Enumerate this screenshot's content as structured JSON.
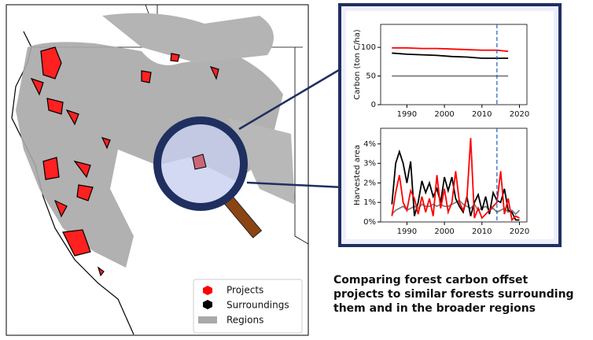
{
  "chart_data": [
    {
      "type": "line",
      "ylabel": "Carbon (ton C/ha)",
      "x": [
        1986,
        1990,
        1994,
        1998,
        2002,
        2006,
        2010,
        2014,
        2017
      ],
      "series": [
        {
          "name": "Projects",
          "color": "#ff0000",
          "values": [
            99,
            99,
            98,
            98,
            97,
            96,
            95,
            95,
            93
          ]
        },
        {
          "name": "Surroundings",
          "color": "#000000",
          "values": [
            90,
            88,
            87,
            86,
            84,
            83,
            81,
            81,
            81
          ]
        },
        {
          "name": "Regions",
          "color": "#808080",
          "values": [
            50,
            50,
            50,
            50,
            50,
            50,
            50,
            50,
            50
          ]
        }
      ],
      "xlim": [
        1983,
        2022
      ],
      "xticks": [
        1990,
        2000,
        2010,
        2020
      ],
      "ylim": [
        0,
        140
      ],
      "yticks": [
        0,
        50,
        100
      ],
      "vline": 2014
    },
    {
      "type": "line",
      "ylabel": "Harvested area",
      "x": [
        1986,
        1987,
        1988,
        1989,
        1990,
        1991,
        1992,
        1993,
        1994,
        1995,
        1996,
        1997,
        1998,
        1999,
        2000,
        2001,
        2002,
        2003,
        2004,
        2005,
        2006,
        2007,
        2008,
        2009,
        2010,
        2011,
        2012,
        2013,
        2014,
        2015,
        2016,
        2017,
        2018,
        2019,
        2020
      ],
      "series": [
        {
          "name": "Projects",
          "color": "#ff0000",
          "values": [
            0.3,
            1.5,
            2.4,
            1.0,
            0.6,
            1.6,
            1.2,
            0.4,
            1.3,
            0.5,
            1.2,
            0.3,
            2.4,
            0.7,
            1.7,
            0.5,
            1.0,
            2.6,
            1.0,
            0.6,
            1.2,
            4.3,
            0.2,
            0.7,
            0.2,
            0.4,
            0.6,
            0.8,
            1.0,
            2.6,
            0.4,
            1.2,
            0.1,
            0.3,
            0.2
          ]
        },
        {
          "name": "Surroundings",
          "color": "#000000",
          "values": [
            0.9,
            3.0,
            3.6,
            3.0,
            2.0,
            3.1,
            0.3,
            1.0,
            2.1,
            1.5,
            2.0,
            1.3,
            1.7,
            1.0,
            2.3,
            1.6,
            2.3,
            1.2,
            0.8,
            0.5,
            1.3,
            0.3,
            1.0,
            1.4,
            0.6,
            1.3,
            0.4,
            1.5,
            1.1,
            1.0,
            1.7,
            0.6,
            0.5,
            0.1,
            0.1
          ]
        },
        {
          "name": "Regions",
          "color": "#808080",
          "values": [
            0.4,
            0.6,
            0.7,
            0.8,
            0.6,
            0.7,
            0.8,
            0.7,
            0.9,
            0.8,
            0.8,
            0.9,
            0.8,
            0.9,
            0.8,
            0.8,
            0.9,
            1.0,
            1.1,
            0.9,
            0.8,
            0.7,
            0.9,
            0.6,
            0.7,
            0.8,
            0.6,
            0.7,
            0.5,
            0.6,
            0.7,
            0.5,
            0.6,
            0.4,
            0.6
          ]
        }
      ],
      "xlim": [
        1983,
        2022
      ],
      "xticks": [
        1990,
        2000,
        2010,
        2020
      ],
      "ylim": [
        0,
        4.8
      ],
      "yticks": [
        {
          "value": 0,
          "label": "0%"
        },
        {
          "value": 1,
          "label": "1%"
        },
        {
          "value": 2,
          "label": "2%"
        },
        {
          "value": 3,
          "label": "3%"
        },
        {
          "value": 4,
          "label": "4%"
        }
      ],
      "vline": 2014
    }
  ],
  "legend": [
    "Projects",
    "Surroundings",
    "Regions"
  ],
  "caption": [
    "Comparing forest carbon offset",
    "projects to similar forests surrounding",
    "them and in the broader regions"
  ]
}
